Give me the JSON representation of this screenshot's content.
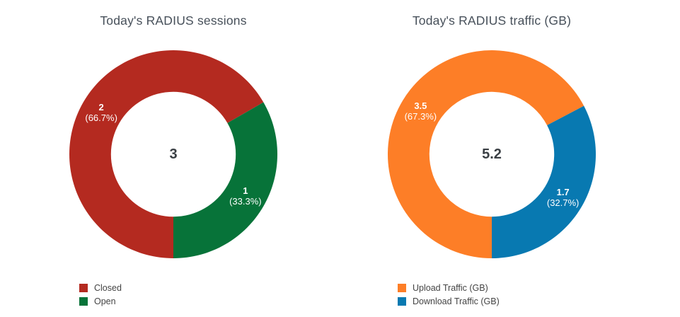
{
  "page": {
    "background": "#ffffff"
  },
  "chart_data": [
    {
      "type": "donut",
      "title": "Today's RADIUS sessions",
      "center_total": "3",
      "hole_ratio": 0.6,
      "rotation_deg": 180,
      "labels": [
        "Closed",
        "Open"
      ],
      "values": [
        2,
        1
      ],
      "value_labels": [
        "2",
        "1"
      ],
      "percent_labels": [
        "(66.7%)",
        "(33.3%)"
      ],
      "colors": [
        "#b42a20",
        "#077339"
      ],
      "label_text_color": "#ffffff",
      "legend_position": "bottom-left"
    },
    {
      "type": "donut",
      "title": "Today's RADIUS traffic (GB)",
      "center_total": "5.2",
      "hole_ratio": 0.6,
      "rotation_deg": 180,
      "labels": [
        "Upload Traffic (GB)",
        "Download Traffic (GB)"
      ],
      "values": [
        3.5,
        1.7
      ],
      "value_labels": [
        "3.5",
        "1.7"
      ],
      "percent_labels": [
        "(67.3%)",
        "(32.7%)"
      ],
      "colors": [
        "#fd7e27",
        "#0879b1"
      ],
      "label_text_color": "#ffffff",
      "legend_position": "bottom-left"
    }
  ]
}
